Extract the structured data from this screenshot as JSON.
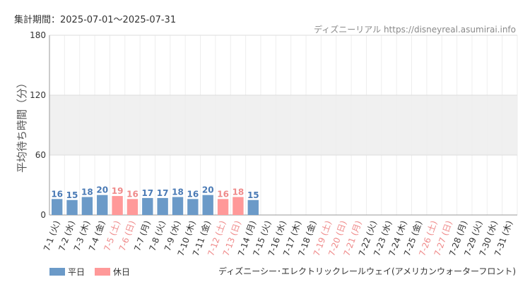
{
  "header": {
    "period": "集計期間：2025-07-01～2025-07-31",
    "credit": "ディズニーリアル https://disneyreal.asumirai.info"
  },
  "footer": {
    "attraction": "ディズニーシー･エレクトリックレールウェイ(アメリカンウォーターフロント)"
  },
  "legend": [
    {
      "label": "平日",
      "color": "#6b9ac8"
    },
    {
      "label": "休日",
      "color": "#ff9999"
    }
  ],
  "colors": {
    "weekday_bar": "#6b9ac8",
    "holiday_bar": "#ff9999",
    "weekday_label": "#4a7ab5",
    "holiday_label": "#ef8a8a",
    "band": "#f0f0f0",
    "grid": "#dddddd"
  },
  "chart_data": {
    "type": "bar",
    "ylabel": "平均待ち時間（分）",
    "ylim": [
      0,
      180
    ],
    "yticks": [
      0,
      60,
      120,
      180
    ],
    "shaded_band": [
      60,
      120
    ],
    "categories": [
      "7-1 (火)",
      "7-2 (水)",
      "7-3 (木)",
      "7-4 (金)",
      "7-5 (土)",
      "7-6 (日)",
      "7-7 (月)",
      "7-8 (火)",
      "7-9 (水)",
      "7-10 (木)",
      "7-11 (金)",
      "7-12 (土)",
      "7-13 (日)",
      "7-14 (月)",
      "7-15 (火)",
      "7-16 (水)",
      "7-17 (木)",
      "7-18 (金)",
      "7-19 (土)",
      "7-20 (日)",
      "7-21 (月)",
      "7-22 (火)",
      "7-23 (水)",
      "7-24 (木)",
      "7-25 (金)",
      "7-26 (土)",
      "7-27 (日)",
      "7-28 (月)",
      "7-29 (火)",
      "7-30 (水)",
      "7-31 (木)"
    ],
    "holiday": [
      false,
      false,
      false,
      false,
      true,
      true,
      false,
      false,
      false,
      false,
      false,
      true,
      true,
      false,
      false,
      false,
      false,
      false,
      true,
      true,
      true,
      false,
      false,
      false,
      false,
      true,
      true,
      false,
      false,
      false,
      false
    ],
    "values": [
      16,
      15,
      18,
      20,
      19,
      16,
      17,
      17,
      18,
      16,
      20,
      16,
      18,
      15,
      null,
      null,
      null,
      null,
      null,
      null,
      null,
      null,
      null,
      null,
      null,
      null,
      null,
      null,
      null,
      null,
      null
    ]
  }
}
